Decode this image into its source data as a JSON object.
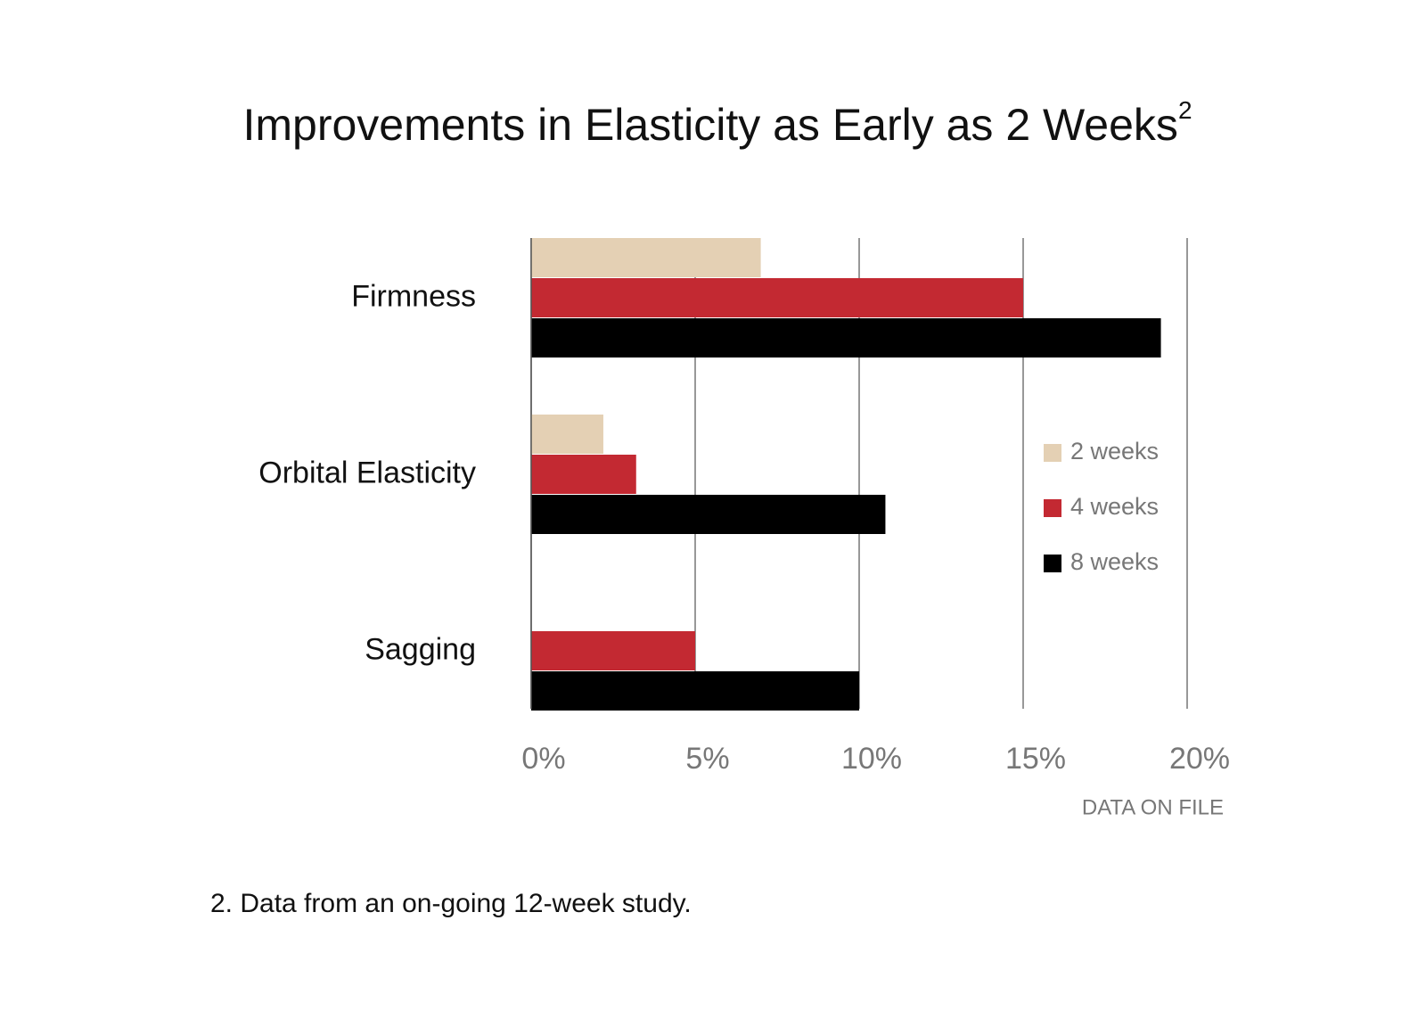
{
  "chart_data": {
    "type": "hbar",
    "title": "Improvements in Elasticity as Early as 2 Weeks",
    "title_superscript": "2",
    "categories": [
      "Firmness",
      "Orbital Elasticity",
      "Sagging"
    ],
    "series": [
      {
        "name": "2 weeks",
        "color": "#e4d0b4",
        "values": [
          7,
          2.2,
          null
        ]
      },
      {
        "name": "4 weeks",
        "color": "#c32932",
        "values": [
          15,
          3.2,
          5
        ]
      },
      {
        "name": "8 weeks",
        "color": "#000000",
        "values": [
          19.2,
          10.8,
          10
        ]
      }
    ],
    "xlim": [
      0,
      20
    ],
    "xticks": [
      {
        "value": 0,
        "label": "0%"
      },
      {
        "value": 5,
        "label": "5%"
      },
      {
        "value": 10,
        "label": "10%"
      },
      {
        "value": 15,
        "label": "15%"
      },
      {
        "value": 20,
        "label": "20%"
      }
    ],
    "grid": true,
    "source": "DATA ON FILE",
    "footnote": "2. Data from an on-going 12-week study."
  }
}
